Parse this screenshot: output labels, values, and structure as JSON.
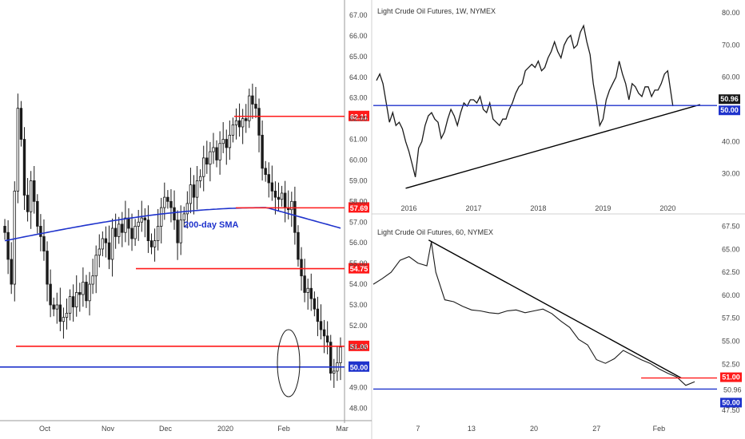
{
  "colors": {
    "up": "#ffffff",
    "down": "#1a1a1a",
    "red_level": "#ff1a1a",
    "blue_level": "#1f33cc",
    "sma": "#1f33cc",
    "trend": "#000000",
    "price_label": "#ffffff"
  },
  "chart_data": [
    {
      "type": "candlestick",
      "panel": "left",
      "title": "",
      "x_ticks": [
        "Oct",
        "Nov",
        "Dec",
        "2020",
        "Feb",
        "Mar"
      ],
      "y_ticks": [
        "48.00",
        "49.00",
        "50.00",
        "50.96",
        "51.00",
        "52.00",
        "53.00",
        "54.00",
        "54.75",
        "55.00",
        "56.00",
        "57.00",
        "57.69",
        "58.00",
        "59.00",
        "60.00",
        "61.00",
        "62.00",
        "62.11",
        "63.00",
        "64.00",
        "65.00",
        "66.00",
        "67.00"
      ],
      "ylim": [
        47.6,
        67.5
      ],
      "annotation": "200-day SMA",
      "levels": [
        {
          "value": 62.11,
          "label": "62.11",
          "color": "red"
        },
        {
          "value": 57.69,
          "label": "57.69",
          "color": "red"
        },
        {
          "value": 54.75,
          "label": "54.75",
          "color": "red"
        },
        {
          "value": 51.0,
          "label": "51.00",
          "color": "red"
        },
        {
          "value": 50.0,
          "label": "50.00",
          "color": "blue"
        }
      ],
      "last_price": "50.96",
      "closes": [
        56.5,
        55.2,
        54.0,
        58.5,
        62.5,
        61.0,
        58.3,
        57.5,
        59.0,
        58.0,
        56.8,
        56.3,
        55.6,
        54.0,
        53.0,
        52.8,
        53.0,
        52.2,
        52.4,
        52.6,
        53.4,
        52.9,
        53.6,
        53.5,
        54.1,
        53.2,
        54.0,
        54.4,
        55.4,
        55.7,
        56.2,
        56.0,
        55.2,
        56.7,
        56.3,
        56.9,
        56.5,
        57.2,
        56.7,
        56.2,
        56.8,
        57.0,
        57.2,
        57.1,
        56.1,
        55.8,
        56.1,
        56.8,
        57.7,
        58.2,
        58.0,
        57.7,
        57.1,
        56.0,
        57.1,
        57.4,
        57.9,
        58.8,
        58.2,
        59.0,
        59.2,
        60.1,
        59.8,
        60.4,
        60.6,
        60.0,
        60.8,
        61.0,
        60.6,
        61.2,
        61.7,
        61.9,
        61.6,
        62.0,
        61.9,
        63.1,
        62.7,
        62.5,
        61.2,
        59.6,
        59.3,
        58.9,
        58.5,
        58.2,
        58.1,
        58.4,
        57.7,
        57.6,
        58.0,
        56.5,
        55.2,
        54.4,
        53.6,
        53.8,
        53.3,
        52.8,
        52.2,
        51.8,
        51.5,
        51.2,
        49.7,
        49.8,
        50.2,
        50.96
      ]
    },
    {
      "type": "line",
      "panel": "top-right",
      "title": "Light Crude Oil Futures, 1W, NYMEX",
      "x_ticks": [
        "2016",
        "2017",
        "2018",
        "2019",
        "2020"
      ],
      "y_ticks": [
        "30.00",
        "40.00",
        "50.00",
        "60.00",
        "70.00",
        "80.00"
      ],
      "ylim": [
        22,
        82
      ],
      "levels": [
        {
          "value": 51.2,
          "label": "50.96",
          "color": "blue"
        }
      ],
      "price_labels": [
        "50.96",
        "50.00"
      ],
      "trendline": [
        [
          2015.95,
          25.5
        ],
        [
          2020.5,
          51.5
        ]
      ],
      "x": [
        2015.5,
        2015.55,
        2015.6,
        2015.65,
        2015.7,
        2015.75,
        2015.8,
        2015.85,
        2015.9,
        2015.95,
        2016.0,
        2016.05,
        2016.1,
        2016.15,
        2016.2,
        2016.25,
        2016.3,
        2016.35,
        2016.4,
        2016.45,
        2016.5,
        2016.55,
        2016.6,
        2016.65,
        2016.7,
        2016.75,
        2016.8,
        2016.85,
        2016.9,
        2016.95,
        2017.0,
        2017.05,
        2017.1,
        2017.15,
        2017.2,
        2017.25,
        2017.3,
        2017.35,
        2017.4,
        2017.45,
        2017.5,
        2017.55,
        2017.6,
        2017.65,
        2017.7,
        2017.75,
        2017.8,
        2017.85,
        2017.9,
        2017.95,
        2018.0,
        2018.05,
        2018.1,
        2018.15,
        2018.2,
        2018.25,
        2018.3,
        2018.35,
        2018.4,
        2018.45,
        2018.5,
        2018.55,
        2018.6,
        2018.65,
        2018.7,
        2018.75,
        2018.8,
        2018.85,
        2018.9,
        2018.95,
        2019.0,
        2019.05,
        2019.1,
        2019.15,
        2019.2,
        2019.25,
        2019.3,
        2019.35,
        2019.4,
        2019.45,
        2019.5,
        2019.55,
        2019.6,
        2019.65,
        2019.7,
        2019.75,
        2019.8,
        2019.85,
        2019.9,
        2019.95,
        2020.0,
        2020.05,
        2020.08
      ],
      "values": [
        59,
        61,
        58,
        52,
        46,
        49,
        45,
        46,
        44,
        40,
        37,
        33,
        29,
        38,
        40,
        45,
        48,
        49,
        47,
        46,
        41,
        43,
        47,
        50,
        48,
        45,
        49,
        52,
        51,
        53,
        53,
        52,
        54,
        50,
        49,
        52,
        47,
        46,
        45,
        47,
        47,
        50,
        52,
        55,
        57,
        58,
        62,
        63,
        64,
        63,
        65,
        62,
        63,
        66,
        68,
        71,
        68,
        66,
        70,
        72,
        73,
        69,
        70,
        74,
        76,
        71,
        67,
        58,
        52,
        45,
        47,
        53,
        56,
        58,
        60,
        65,
        61,
        58,
        53,
        58,
        57,
        55,
        54,
        57,
        57,
        54,
        56,
        56,
        58,
        61,
        62,
        55,
        51
      ]
    },
    {
      "type": "line",
      "panel": "bottom-right",
      "title": "Light Crude Oil Futures, 60, NYMEX",
      "x_ticks": [
        "7",
        "13",
        "20",
        "27",
        "Feb"
      ],
      "y_ticks": [
        "47.50",
        "50.00",
        "52.50",
        "55.00",
        "57.50",
        "60.00",
        "62.50",
        "65.00",
        "67.50"
      ],
      "ylim": [
        46.8,
        67.8
      ],
      "levels": [
        {
          "value": 51.0,
          "label": "51.00",
          "color": "red"
        },
        {
          "value": 49.8,
          "label": "50.00",
          "color": "blue"
        }
      ],
      "price_labels": [
        "51.00",
        "50.96",
        "50.00"
      ],
      "trendline": [
        [
          8.2,
          66.0
        ],
        [
          36.5,
          51.0
        ]
      ],
      "x": [
        2,
        3,
        4,
        5,
        6,
        7,
        8,
        8.5,
        9,
        10,
        11,
        12,
        13,
        14,
        15,
        16,
        17,
        18,
        19,
        20,
        21,
        22,
        23,
        24,
        25,
        26,
        27,
        28,
        29,
        30,
        31,
        32,
        33,
        34,
        35,
        36,
        37,
        38
      ],
      "values": [
        61.2,
        61.8,
        62.5,
        63.8,
        64.2,
        63.5,
        63.2,
        65.8,
        62.5,
        59.5,
        59.3,
        58.8,
        58.4,
        58.3,
        58.1,
        58.0,
        58.3,
        58.4,
        58.1,
        58.3,
        58.5,
        58.0,
        57.2,
        56.5,
        55.2,
        54.6,
        53.0,
        52.6,
        53.1,
        54.0,
        53.5,
        53.0,
        52.6,
        52.0,
        51.5,
        51.1,
        50.2,
        50.6
      ]
    }
  ]
}
